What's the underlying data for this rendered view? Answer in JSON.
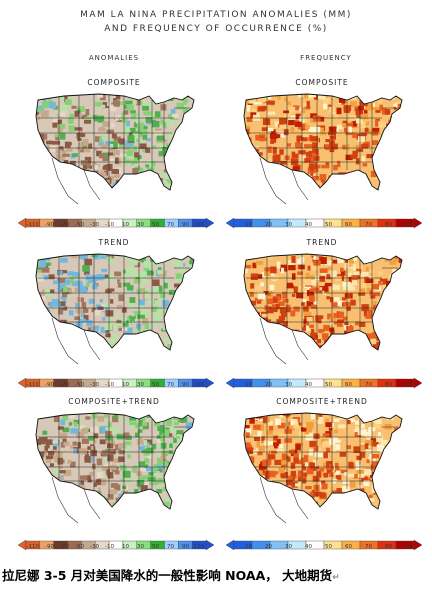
{
  "title_line1": "MAM LA NINA PRECIPITATION ANOMALIES (MM)",
  "title_line2": "AND FREQUENCY OF OCCURRENCE (%)",
  "col_left": "ANOMALIES",
  "col_right": "FREQUENCY",
  "panels": {
    "a1": "COMPOSITE",
    "f1": "COMPOSITE",
    "a2": "TREND",
    "f2": "TREND",
    "a3": "COMPOSITE+TREND",
    "f3": "COMPOSITE+TREND"
  },
  "anomaly_scale": {
    "labels": [
      "-110",
      "-90",
      "-70",
      "-50",
      "-30",
      "-10",
      "10",
      "30",
      "50",
      "70",
      "90",
      "110"
    ],
    "colors": [
      "#e0602a",
      "#f0a060",
      "#6b3a2a",
      "#a06a50",
      "#c8a88a",
      "#e8d8c8",
      "#ffffff",
      "#c8f0c0",
      "#88e080",
      "#30b030",
      "#a0d0ff",
      "#5090f0",
      "#2050d0"
    ]
  },
  "frequency_scale": {
    "labels": [
      "10",
      "20",
      "30",
      "40",
      "50",
      "60",
      "70",
      "80",
      "90"
    ],
    "colors": [
      "#2060e0",
      "#4090f0",
      "#80c0f8",
      "#c0e8ff",
      "#ffffff",
      "#ffe090",
      "#ffb040",
      "#f07020",
      "#e03010",
      "#b00000"
    ]
  },
  "caption": "拉尼娜 3-5 月对美国降水的一般性影响 NOAA， 大地期货",
  "cursor_mark": "↵"
}
